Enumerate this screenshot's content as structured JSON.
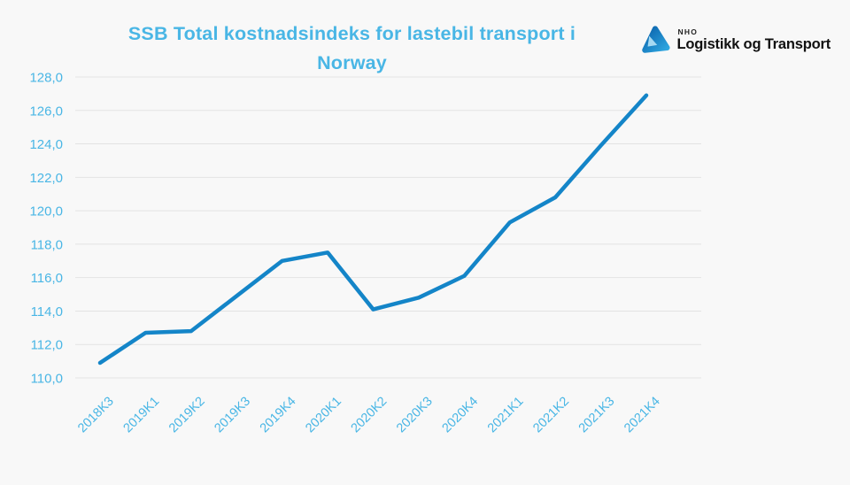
{
  "header": {
    "title_line1": "SSB Total kostnadsindeks for lastebil transport i",
    "title_line2": "Norway",
    "logo": {
      "org": "NHO",
      "name": "Logistikk og Transport",
      "mark": "nho-triangle-logo"
    }
  },
  "chart_data": {
    "type": "line",
    "title": "SSB Total kostnadsindeks for lastebil transport i Norway",
    "categories": [
      "2018K3",
      "2019K1",
      "2019K2",
      "2019K3",
      "2019K4",
      "2020K1",
      "2020K2",
      "2020K3",
      "2020K4",
      "2021K1",
      "2021K2",
      "2021K3",
      "2021K4"
    ],
    "series": [
      {
        "name": "SSB Total kostnadsindeks",
        "values": [
          110.9,
          112.7,
          112.8,
          114.9,
          117.0,
          117.5,
          114.1,
          114.8,
          116.1,
          119.3,
          120.8,
          123.9,
          126.9
        ]
      }
    ],
    "xlabel": "",
    "ylabel": "",
    "ylim": [
      110,
      128
    ],
    "ytick_step": 2,
    "yticks": {
      "values": [
        128,
        126,
        124,
        122,
        120,
        118,
        116,
        114,
        112,
        110
      ],
      "labels": [
        "128,0",
        "126,0",
        "124,0",
        "122,0",
        "120,0",
        "118,0",
        "116,0",
        "114,0",
        "112,0",
        "110,0"
      ]
    },
    "grid": "horizontal",
    "legend": "none",
    "x_label_rotation_deg": 45,
    "colors": {
      "line": "#1485c8",
      "title": "#49b6e5",
      "axis_labels": "#49b6e5",
      "gridline": "#e3e3e3",
      "background": "#f8f8f8",
      "logo_dark": "#0a61ab",
      "logo_light": "#2fa8e1",
      "logo_accent": "#a6d9f2"
    }
  }
}
